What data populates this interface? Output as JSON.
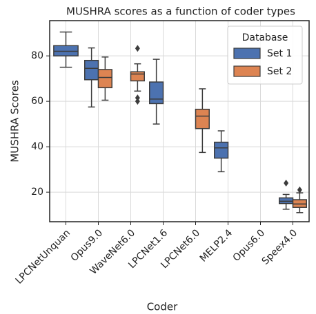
{
  "chart_data": {
    "type": "box",
    "title": "MUSHRA scores as a function of coder types",
    "xlabel": "Coder",
    "ylabel": "MUSHRA Scores",
    "categories": [
      "LPCNetUnquan",
      "Opus9.0",
      "WaveNet6.0",
      "LPCNet1.6",
      "LPCNet6.0",
      "MELP2.4",
      "Opus6.0",
      "Speex4.0"
    ],
    "ylim": [
      7,
      95.5
    ],
    "yticks": [
      20,
      40,
      60,
      80
    ],
    "grid": true,
    "legend": {
      "title": "Database",
      "loc": "upper right"
    },
    "series": [
      {
        "name": "Set 1",
        "color": "#4c72b0",
        "boxes": [
          {
            "whislo": 75,
            "q1": 80,
            "med": 82,
            "q3": 84.5,
            "whishi": 90.5,
            "fliers": []
          },
          {
            "whislo": 57.5,
            "q1": 69.5,
            "med": 74.5,
            "q3": 78,
            "whishi": 83.5,
            "fliers": []
          },
          null,
          {
            "whislo": 50,
            "q1": 59,
            "med": 61,
            "q3": 68.5,
            "whishi": 78.5,
            "fliers": []
          },
          null,
          {
            "whislo": 29,
            "q1": 35,
            "med": 39.5,
            "q3": 42,
            "whishi": 47,
            "fliers": []
          },
          null,
          {
            "whislo": 12.5,
            "q1": 15,
            "med": 16,
            "q3": 17.5,
            "whishi": 19,
            "fliers": [
              24
            ]
          }
        ]
      },
      {
        "name": "Set 2",
        "color": "#dd8452",
        "boxes": [
          null,
          {
            "whislo": 60.5,
            "q1": 66,
            "med": 70.5,
            "q3": 74,
            "whishi": 79.5,
            "fliers": []
          },
          {
            "whislo": 64.5,
            "q1": 69,
            "med": 72,
            "q3": 73,
            "whishi": 76.5,
            "fliers": [
              83.3,
              61.5,
              60
            ]
          },
          null,
          {
            "whislo": 37.5,
            "q1": 48,
            "med": 53.5,
            "q3": 56.5,
            "whishi": 65.5,
            "fliers": []
          },
          null,
          null,
          {
            "whislo": 11,
            "q1": 13.3,
            "med": 14.8,
            "q3": 16.7,
            "whishi": 19.7,
            "fliers": [
              21
            ]
          }
        ]
      }
    ]
  }
}
